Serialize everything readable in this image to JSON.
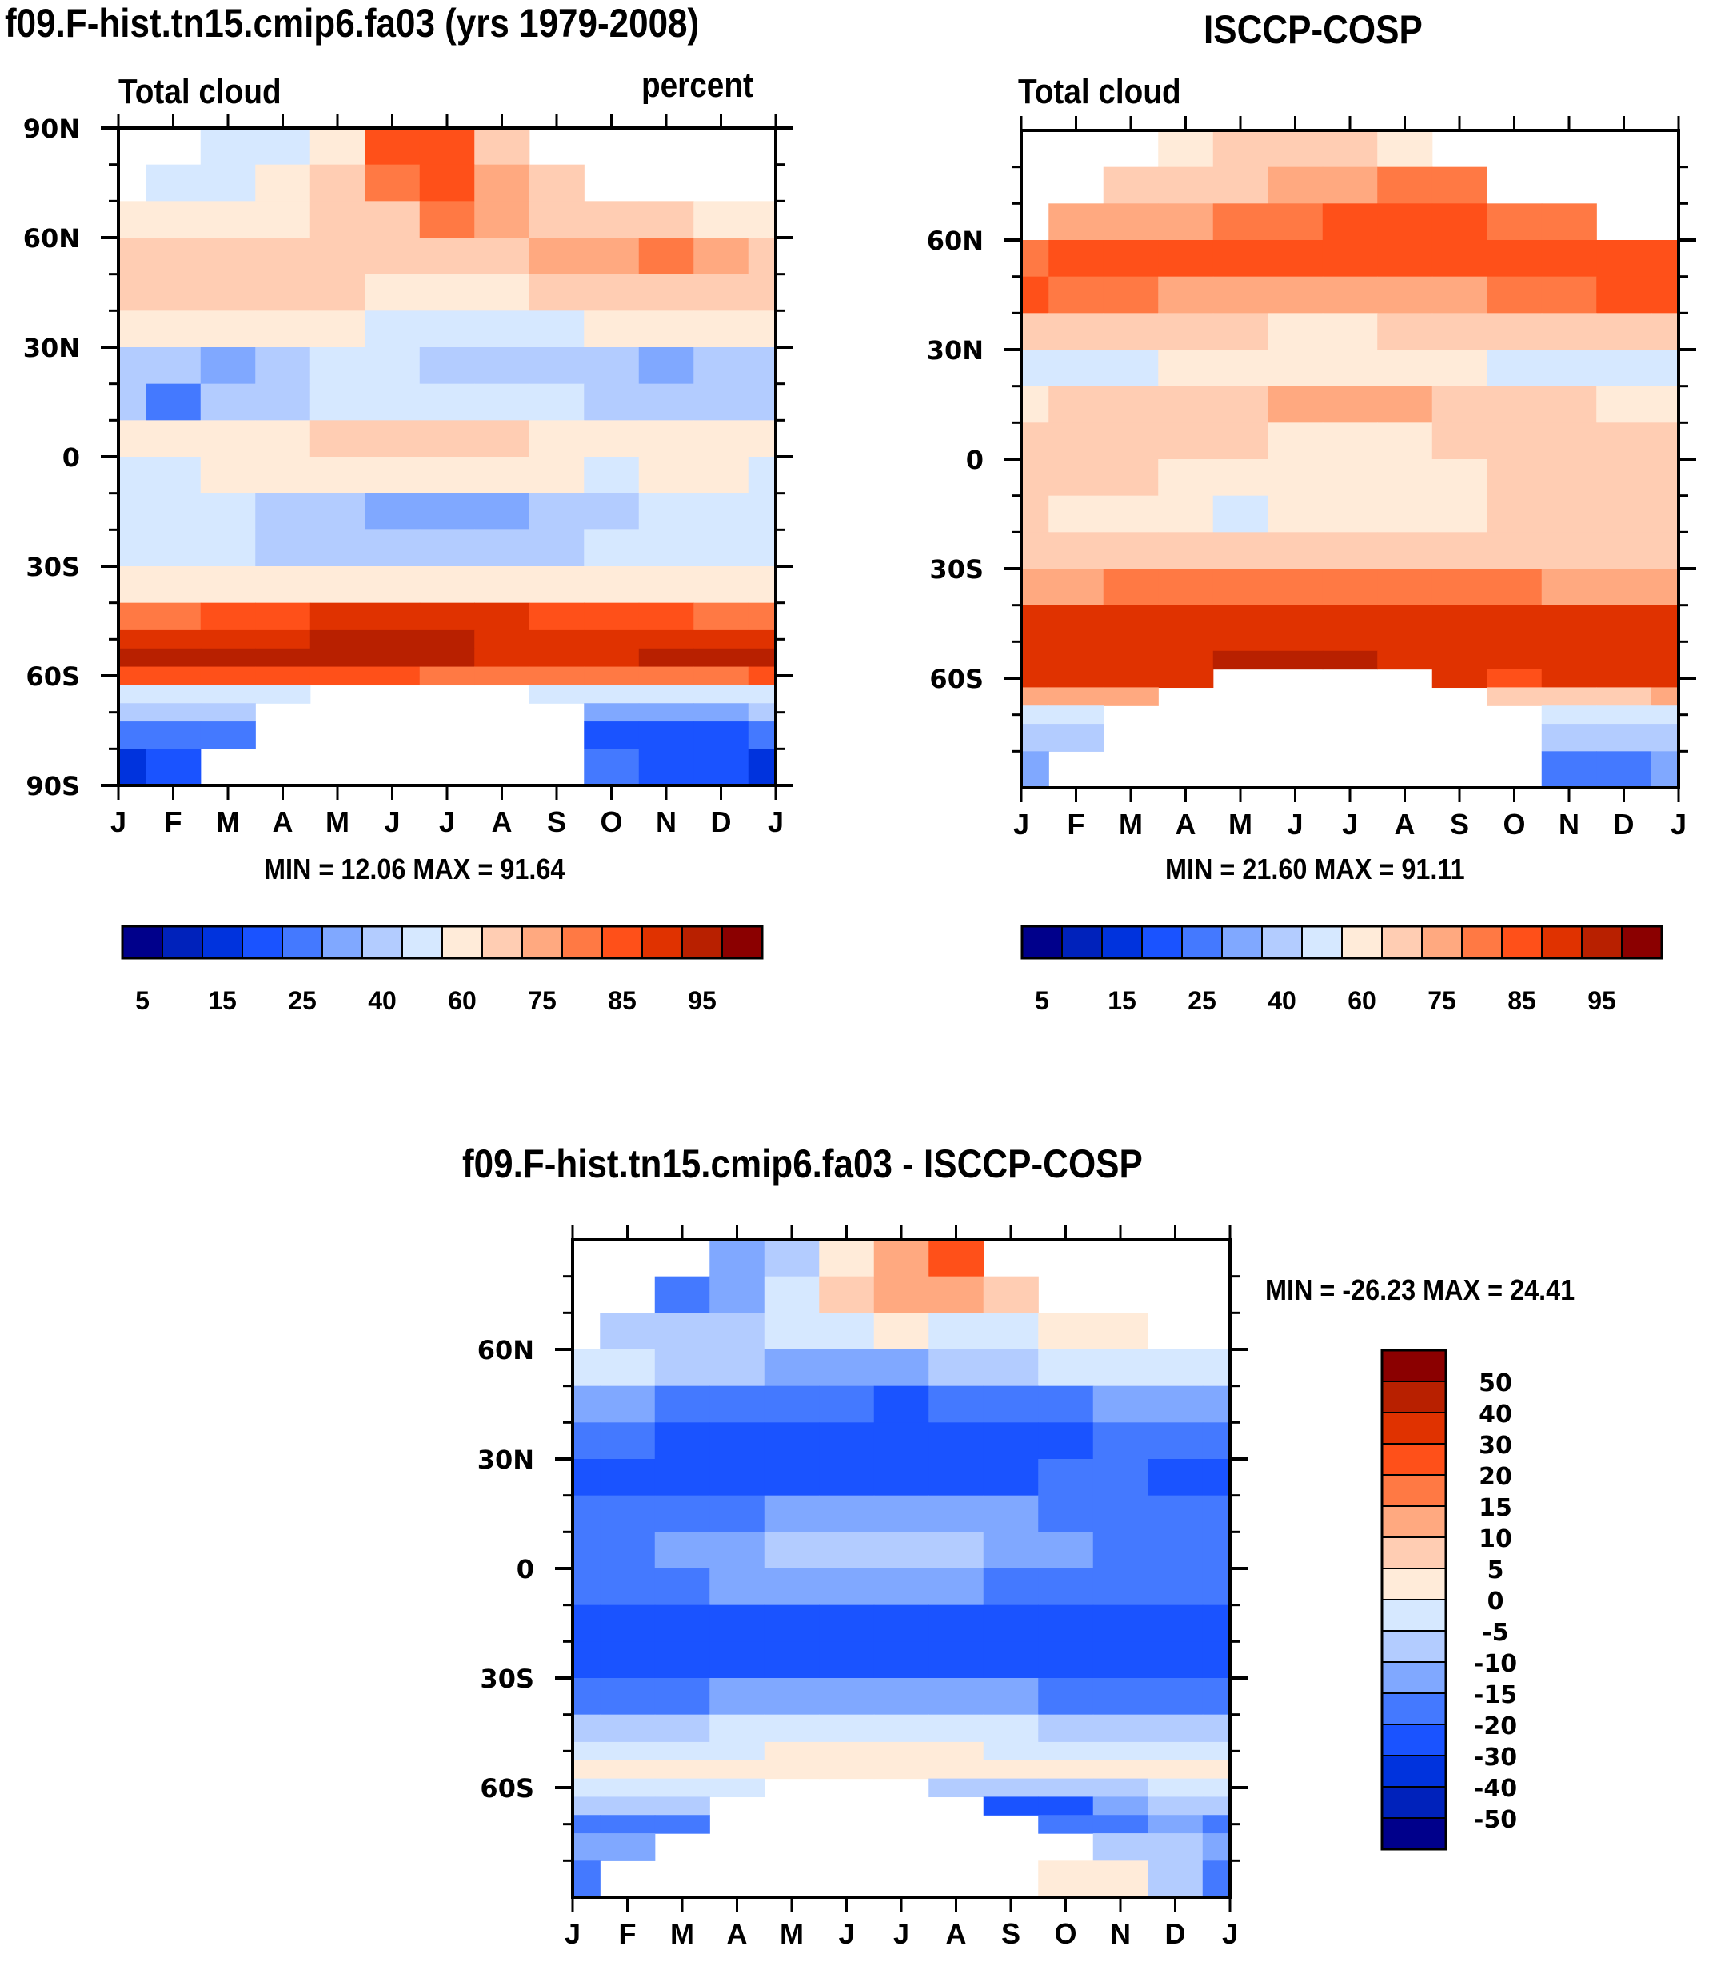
{
  "palette": [
    "#00008b",
    "#0022bb",
    "#0033dd",
    "#1a53ff",
    "#4479ff",
    "#80a8ff",
    "#b3ccff",
    "#d6e8ff",
    "#ffebd9",
    "#ffcdb3",
    "#ffa980",
    "#ff7944",
    "#ff5019",
    "#e03200",
    "#b82000",
    "#8b0000"
  ],
  "chart_data": [
    {
      "id": "model",
      "type": "heatmap",
      "title": "f09.F-hist.tn15.cmip6.fa03 (yrs 1979-2008)",
      "left_label": "Total cloud",
      "right_label": "percent",
      "xlabel": "",
      "ylabel": "",
      "x_tick_labels": [
        "J",
        "F",
        "M",
        "A",
        "M",
        "J",
        "J",
        "A",
        "S",
        "O",
        "N",
        "D",
        "J"
      ],
      "y_tick_labels": [
        "90N",
        "60N",
        "30N",
        "0",
        "30S",
        "60S",
        "90S"
      ],
      "y_range": [
        -90,
        90
      ],
      "min_max_text": "MIN =  12.06 MAX =  91.64",
      "colorbar": {
        "orientation": "horizontal",
        "levels": [
          5,
          10,
          15,
          20,
          25,
          30,
          40,
          50,
          60,
          70,
          75,
          80,
          85,
          90,
          95
        ],
        "labels": [
          "5",
          "15",
          "25",
          "40",
          "60",
          "75",
          "85",
          "95"
        ]
      },
      "lat_rows": [
        85,
        75,
        65,
        55,
        45,
        35,
        25,
        15,
        5,
        -5,
        -15,
        -25,
        -35,
        -45,
        -50,
        -55,
        -60,
        -65,
        -70,
        -75,
        -85
      ],
      "values": [
        [
          null,
          null,
          45,
          42,
          55,
          80,
          82,
          65,
          null,
          null,
          null,
          null,
          null
        ],
        [
          null,
          48,
          45,
          52,
          62,
          75,
          80,
          72,
          65,
          null,
          null,
          null,
          null
        ],
        [
          55,
          55,
          55,
          58,
          62,
          68,
          75,
          70,
          68,
          65,
          62,
          58,
          55
        ],
        [
          65,
          62,
          62,
          62,
          62,
          63,
          65,
          68,
          70,
          72,
          75,
          70,
          65
        ],
        [
          62,
          60,
          60,
          60,
          60,
          58,
          58,
          58,
          62,
          62,
          62,
          62,
          62
        ],
        [
          52,
          50,
          50,
          50,
          50,
          48,
          45,
          45,
          48,
          50,
          52,
          52,
          52
        ],
        [
          30,
          30,
          28,
          35,
          40,
          40,
          38,
          38,
          38,
          32,
          28,
          30,
          30
        ],
        [
          32,
          20,
          30,
          38,
          44,
          48,
          48,
          48,
          44,
          38,
          35,
          38,
          35
        ],
        [
          55,
          55,
          52,
          58,
          62,
          62,
          62,
          62,
          58,
          55,
          55,
          55,
          55
        ],
        [
          45,
          45,
          50,
          52,
          50,
          50,
          50,
          50,
          50,
          48,
          50,
          50,
          48
        ],
        [
          42,
          40,
          40,
          35,
          32,
          28,
          28,
          28,
          35,
          38,
          40,
          40,
          42
        ],
        [
          42,
          40,
          40,
          38,
          35,
          35,
          35,
          35,
          38,
          40,
          40,
          42,
          42
        ],
        [
          55,
          55,
          55,
          55,
          55,
          55,
          55,
          55,
          55,
          55,
          55,
          55,
          55
        ],
        [
          78,
          78,
          80,
          82,
          85,
          85,
          86,
          85,
          84,
          82,
          80,
          78,
          78
        ],
        [
          88,
          88,
          88,
          89,
          90,
          90,
          90,
          89,
          88,
          88,
          88,
          88,
          88
        ],
        [
          92,
          92,
          92,
          92,
          91,
          90,
          90,
          89,
          89,
          88,
          90,
          92,
          92
        ],
        [
          82,
          82,
          82,
          82,
          82,
          80,
          78,
          78,
          78,
          78,
          78,
          78,
          82
        ],
        [
          45,
          45,
          45,
          45,
          null,
          null,
          null,
          null,
          45,
          45,
          45,
          45,
          45
        ],
        [
          30,
          30,
          30,
          null,
          null,
          null,
          null,
          null,
          null,
          28,
          28,
          28,
          30
        ],
        [
          20,
          22,
          22,
          null,
          null,
          null,
          null,
          null,
          null,
          18,
          16,
          15,
          20
        ],
        [
          14,
          18,
          null,
          null,
          null,
          null,
          null,
          null,
          null,
          20,
          18,
          15,
          14
        ]
      ]
    },
    {
      "id": "obs",
      "type": "heatmap",
      "title": "ISCCP-COSP",
      "left_label": "Total cloud",
      "xlabel": "",
      "ylabel": "",
      "x_tick_labels": [
        "J",
        "F",
        "M",
        "A",
        "M",
        "J",
        "J",
        "A",
        "S",
        "O",
        "N",
        "D",
        "J"
      ],
      "y_tick_labels": [
        "60N",
        "30N",
        "0",
        "30S",
        "60S"
      ],
      "y_range": [
        -90,
        90
      ],
      "min_max_text": "MIN =  21.60 MAX =  91.11",
      "colorbar": {
        "orientation": "horizontal",
        "levels": [
          5,
          10,
          15,
          20,
          25,
          30,
          40,
          50,
          60,
          70,
          75,
          80,
          85,
          90,
          95
        ],
        "labels": [
          "5",
          "15",
          "25",
          "40",
          "60",
          "75",
          "85",
          "95"
        ]
      },
      "lat_rows": [
        85,
        75,
        65,
        55,
        45,
        35,
        25,
        15,
        5,
        -5,
        -15,
        -25,
        -35,
        -45,
        -50,
        -55,
        -60,
        -65,
        -70,
        -75,
        -85
      ],
      "values": [
        [
          null,
          null,
          null,
          55,
          60,
          62,
          62,
          55,
          null,
          null,
          null,
          null,
          null
        ],
        [
          null,
          null,
          62,
          62,
          68,
          70,
          72,
          75,
          75,
          null,
          null,
          null,
          null
        ],
        [
          null,
          70,
          72,
          74,
          76,
          78,
          80,
          80,
          80,
          78,
          76,
          null,
          null
        ],
        [
          78,
          80,
          80,
          82,
          84,
          82,
          80,
          80,
          80,
          80,
          80,
          80,
          80
        ],
        [
          80,
          78,
          76,
          74,
          72,
          72,
          72,
          72,
          74,
          76,
          78,
          80,
          80
        ],
        [
          68,
          66,
          64,
          62,
          60,
          58,
          58,
          60,
          62,
          62,
          64,
          66,
          66
        ],
        [
          45,
          45,
          45,
          50,
          55,
          58,
          58,
          55,
          50,
          45,
          45,
          45,
          45
        ],
        [
          58,
          60,
          62,
          64,
          66,
          72,
          72,
          70,
          64,
          62,
          60,
          58,
          58
        ],
        [
          66,
          66,
          66,
          66,
          60,
          58,
          58,
          58,
          60,
          66,
          66,
          66,
          66
        ],
        [
          66,
          66,
          62,
          58,
          58,
          58,
          58,
          58,
          58,
          62,
          66,
          66,
          66
        ],
        [
          62,
          58,
          58,
          58,
          45,
          58,
          58,
          58,
          58,
          62,
          66,
          66,
          62
        ],
        [
          68,
          68,
          68,
          68,
          68,
          68,
          68,
          68,
          68,
          68,
          68,
          68,
          68
        ],
        [
          74,
          74,
          76,
          76,
          76,
          76,
          76,
          76,
          76,
          76,
          74,
          74,
          74
        ],
        [
          86,
          86,
          86,
          86,
          86,
          86,
          86,
          86,
          86,
          86,
          86,
          86,
          86
        ],
        [
          89,
          89,
          89,
          89,
          89,
          89,
          89,
          89,
          89,
          89,
          89,
          89,
          89
        ],
        [
          89,
          89,
          89,
          89,
          90,
          91,
          90,
          89,
          89,
          89,
          89,
          89,
          89
        ],
        [
          89,
          89,
          89,
          89,
          null,
          null,
          null,
          null,
          85,
          84,
          89,
          89,
          89
        ],
        [
          70,
          70,
          70,
          null,
          null,
          null,
          null,
          null,
          null,
          62,
          62,
          62,
          70
        ],
        [
          45,
          45,
          null,
          null,
          null,
          null,
          null,
          null,
          null,
          null,
          42,
          42,
          45
        ],
        [
          38,
          38,
          null,
          null,
          null,
          null,
          null,
          null,
          null,
          null,
          36,
          34,
          38
        ],
        [
          28,
          null,
          null,
          null,
          null,
          null,
          null,
          null,
          null,
          null,
          24,
          22,
          28
        ]
      ]
    },
    {
      "id": "diff",
      "type": "heatmap",
      "title": "f09.F-hist.tn15.cmip6.fa03 - ISCCP-COSP",
      "xlabel": "",
      "ylabel": "",
      "x_tick_labels": [
        "J",
        "F",
        "M",
        "A",
        "M",
        "J",
        "J",
        "A",
        "S",
        "O",
        "N",
        "D",
        "J"
      ],
      "y_tick_labels": [
        "60N",
        "30N",
        "0",
        "30S",
        "60S"
      ],
      "y_range": [
        -90,
        90
      ],
      "min_max_text": "MIN = -26.23 MAX =  24.41",
      "colorbar": {
        "orientation": "vertical",
        "levels": [
          -50,
          -40,
          -30,
          -20,
          -15,
          -10,
          -5,
          0,
          5,
          10,
          15,
          20,
          30,
          40,
          50
        ],
        "labels": [
          "50",
          "40",
          "30",
          "20",
          "15",
          "10",
          "5",
          "0",
          "-5",
          "-10",
          "-15",
          "-20",
          "-30",
          "-40",
          "-50"
        ]
      },
      "lat_rows": [
        85,
        75,
        65,
        55,
        45,
        35,
        25,
        15,
        5,
        -5,
        -15,
        -25,
        -35,
        -45,
        -50,
        -55,
        -60,
        -65,
        -70,
        -75,
        -85
      ],
      "values": [
        [
          null,
          null,
          null,
          -12,
          -8,
          2,
          14,
          22,
          null,
          null,
          null,
          null,
          null
        ],
        [
          null,
          null,
          -18,
          -12,
          -4,
          6,
          12,
          10,
          6,
          null,
          null,
          null,
          null
        ],
        [
          null,
          -10,
          -10,
          -8,
          -4,
          -2,
          0,
          -1,
          -2,
          2,
          4,
          null,
          null
        ],
        [
          -3,
          -4,
          -6,
          -8,
          -12,
          -12,
          -12,
          -10,
          -8,
          -4,
          -3,
          -2,
          -3
        ],
        [
          -12,
          -14,
          -16,
          -18,
          -20,
          -20,
          -21,
          -20,
          -18,
          -16,
          -14,
          -12,
          -12
        ],
        [
          -18,
          -18,
          -22,
          -22,
          -24,
          -24,
          -24,
          -24,
          -24,
          -22,
          -20,
          -18,
          -18
        ],
        [
          -24,
          -22,
          -22,
          -24,
          -22,
          -22,
          -22,
          -22,
          -22,
          -20,
          -20,
          -22,
          -24
        ],
        [
          -18,
          -18,
          -18,
          -16,
          -14,
          -12,
          -12,
          -12,
          -14,
          -16,
          -16,
          -18,
          -18
        ],
        [
          -16,
          -16,
          -14,
          -12,
          -8,
          -8,
          -8,
          -10,
          -12,
          -14,
          -16,
          -16,
          -16
        ],
        [
          -16,
          -16,
          -16,
          -15,
          -14,
          -14,
          -14,
          -15,
          -16,
          -16,
          -16,
          -16,
          -16
        ],
        [
          -22,
          -22,
          -22,
          -22,
          -22,
          -22,
          -22,
          -22,
          -22,
          -22,
          -22,
          -22,
          -22
        ],
        [
          -24,
          -24,
          -24,
          -24,
          -24,
          -24,
          -24,
          -24,
          -24,
          -24,
          -24,
          -24,
          -24
        ],
        [
          -16,
          -16,
          -16,
          -14,
          -12,
          -12,
          -12,
          -12,
          -14,
          -16,
          -16,
          -16,
          -16
        ],
        [
          -6,
          -6,
          -6,
          -4,
          -3,
          -2,
          -2,
          -3,
          -4,
          -6,
          -6,
          -6,
          -6
        ],
        [
          -2,
          -2,
          -2,
          -1,
          1,
          2,
          2,
          1,
          -1,
          -2,
          -2,
          -2,
          -2
        ],
        [
          2,
          2,
          2,
          2,
          2,
          2,
          2,
          2,
          2,
          2,
          2,
          2,
          2
        ],
        [
          -4,
          -4,
          -4,
          -4,
          null,
          null,
          null,
          -6,
          -8,
          -8,
          -6,
          -4,
          -4
        ],
        [
          -10,
          -10,
          -10,
          null,
          null,
          null,
          null,
          null,
          -22,
          -22,
          -14,
          -10,
          -10
        ],
        [
          -18,
          -18,
          -18,
          null,
          null,
          null,
          null,
          null,
          null,
          -18,
          -16,
          -14,
          -18
        ],
        [
          -14,
          -12,
          null,
          null,
          null,
          null,
          null,
          null,
          null,
          null,
          -6,
          -10,
          -14
        ],
        [
          -20,
          null,
          null,
          null,
          null,
          null,
          null,
          null,
          null,
          2,
          4,
          -6,
          -20
        ]
      ]
    }
  ]
}
